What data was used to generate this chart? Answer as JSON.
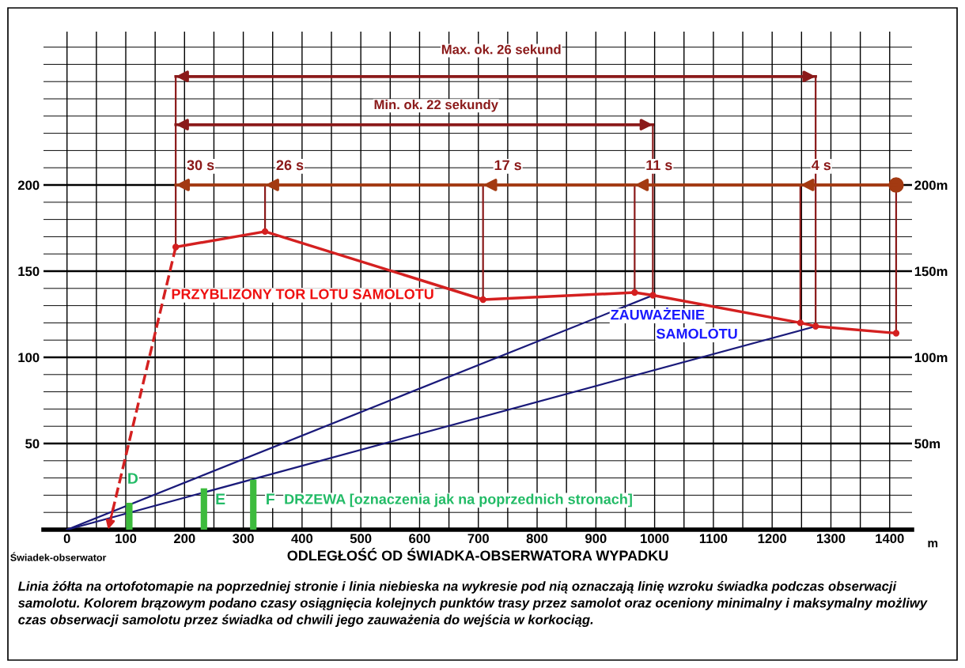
{
  "chart_data": {
    "type": "line",
    "xlabel": "ODLEGŁOŚĆ OD ŚWIADKA-OBSERWATORA WYPADKU",
    "xlim": [
      -40,
      1438
    ],
    "ylim": [
      0,
      289
    ],
    "y2lim": [
      0,
      289
    ],
    "xticks": [
      0,
      {
        "value": 50,
        "label": null
      },
      100,
      {
        "value": 150,
        "label": null
      },
      200,
      {
        "value": 250,
        "label": null
      },
      300,
      {
        "value": 350,
        "label": null
      },
      400,
      {
        "value": 450,
        "label": null
      },
      500,
      {
        "value": 550,
        "label": null
      },
      600,
      {
        "value": 650,
        "label": null
      },
      700,
      {
        "value": 750,
        "label": null
      },
      800,
      {
        "value": 850,
        "label": null
      },
      900,
      {
        "value": 950,
        "label": null
      },
      1000,
      {
        "value": 1050,
        "label": null
      },
      1100,
      {
        "value": 1150,
        "label": null
      },
      1200,
      {
        "value": 1250,
        "label": null
      },
      1300,
      {
        "value": 1350,
        "label": null
      },
      1400
    ],
    "yticks": [
      {
        "value": 10,
        "label": null
      },
      {
        "value": 20,
        "label": null
      },
      {
        "value": 30,
        "label": null
      },
      {
        "value": 40,
        "label": null
      },
      50,
      {
        "value": 60,
        "label": null
      },
      {
        "value": 70,
        "label": null
      },
      {
        "value": 80,
        "label": null
      },
      {
        "value": 90,
        "label": null
      },
      100,
      {
        "value": 110,
        "label": null
      },
      {
        "value": 120,
        "label": null
      },
      {
        "value": 130,
        "label": null
      },
      {
        "value": 140,
        "label": null
      },
      150,
      {
        "value": 160,
        "label": null
      },
      {
        "value": 170,
        "label": null
      },
      {
        "value": 180,
        "label": null
      },
      {
        "value": 190,
        "label": null
      },
      200,
      {
        "value": 210,
        "label": null
      },
      {
        "value": 220,
        "label": null
      },
      {
        "value": 230,
        "label": null
      },
      {
        "value": 240,
        "label": null
      },
      {
        "value": 250,
        "label": null
      },
      {
        "value": 260,
        "label": null
      },
      {
        "value": 270,
        "label": null
      },
      {
        "value": 280,
        "label": null
      }
    ],
    "y2ticks": [
      {
        "value": 50,
        "label": "50m"
      },
      {
        "value": 100,
        "label": "100m"
      },
      {
        "value": 150,
        "label": "150m"
      },
      {
        "value": 200,
        "label": "200m"
      }
    ],
    "grid": true,
    "series": [
      {
        "color": "#d42020",
        "marker": "circle",
        "x": [
          185,
          337,
          708,
          966,
          997,
          1248,
          1274,
          1411
        ],
        "values": [
          164,
          173,
          133.5,
          137.6,
          136,
          120,
          118,
          114
        ]
      },
      {
        "color": "#d42020",
        "line_style": "dashed",
        "x": [
          185,
          70
        ],
        "values": [
          164,
          0
        ]
      },
      {
        "type": "line",
        "color": "#1a1a7a",
        "x": [
          0,
          997
        ],
        "values": [
          0,
          136
        ]
      },
      {
        "type": "line",
        "color": "#1a1a7a",
        "x": [
          0,
          1274
        ],
        "values": [
          0,
          118
        ]
      },
      {
        "type": "bar",
        "color": "#3dbb3d",
        "x": [
          106,
          233,
          317
        ],
        "values": [
          15.6,
          24,
          29
        ]
      },
      {
        "color": "#a33a12",
        "x": [
          1411,
          1248,
          966,
          708,
          337,
          185
        ],
        "values": [
          200,
          200,
          200,
          200,
          200,
          200
        ]
      },
      {
        "type": "line",
        "color": "#8b1a1a",
        "x": [
          185,
          997
        ],
        "values": [
          235,
          235
        ]
      },
      {
        "type": "line",
        "color": "#8b1a1a",
        "x": [
          185,
          1274
        ],
        "values": [
          263,
          263
        ]
      },
      {
        "type": "line",
        "color": "#8b1a1a",
        "x": [
          185,
          185
        ],
        "values": [
          164,
          263
        ]
      },
      {
        "type": "line",
        "color": "#8b1a1a",
        "x": [
          337,
          337
        ],
        "values": [
          173,
          200
        ]
      },
      {
        "type": "line",
        "color": "#8b1a1a",
        "x": [
          708,
          708
        ],
        "values": [
          133.5,
          200
        ]
      },
      {
        "type": "line",
        "color": "#8b1a1a",
        "x": [
          966,
          966
        ],
        "values": [
          137.6,
          200
        ]
      },
      {
        "type": "line",
        "color": "#8b1a1a",
        "x": [
          997,
          997
        ],
        "values": [
          136,
          235
        ]
      },
      {
        "type": "line",
        "color": "#8b1a1a",
        "x": [
          1248,
          1248
        ],
        "values": [
          120,
          200
        ]
      },
      {
        "type": "line",
        "color": "#8b1a1a",
        "x": [
          1274,
          1274
        ],
        "values": [
          118,
          263
        ]
      },
      {
        "type": "line",
        "color": "#8b1a1a",
        "x": [
          1411,
          1411
        ],
        "values": [
          114,
          200
        ]
      }
    ],
    "annotations": [
      "Max. ok. 26 sekund",
      "Min. ok. 22 sekundy",
      {
        "text": "30 s",
        "x": 185,
        "y": 200
      },
      {
        "text": "26 s",
        "x": 337,
        "y": 200
      },
      {
        "text": "17 s",
        "x": 708,
        "y": 200
      },
      {
        "text": "11 s",
        "x": 966,
        "y": 200
      },
      {
        "text": "4 s",
        "x": 1248,
        "y": 200
      },
      "PRZYBLIZONY TOR LOTU SAMOLOTU",
      "ZAUWAŻENIE",
      "SAMOLOTU",
      "D",
      "E",
      "F",
      "DRZEWA [oznaczenia jak na poprzednich stronach]",
      "Świadek-obserwator",
      "m",
      "Linia żółta na ortofotomapie na poprzedniej stronie i linia niebieska na wykresie pod nią oznaczają linię wzroku świadka podczas obserwacji samolotu. Kolorem brązowym podano czasy osiągnięcia kolejnych punktów trasy przez samolot oraz oceniony minimalny i maksymalny możliwy czas obserwacji samolotu przez świadka od chwili jego zauważenia do wejścia w korkociąg."
    ]
  }
}
